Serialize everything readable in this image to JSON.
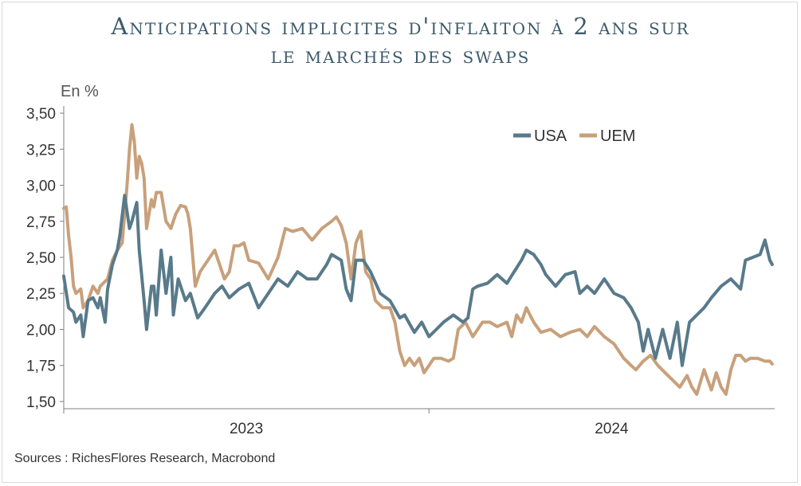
{
  "chart_data": {
    "type": "line",
    "title_line1": "Anticipations implicites d'inflaiton à 2 ans sur",
    "title_line2": "le marchés des swaps",
    "ylabel": "En %",
    "ylim": [
      1.45,
      3.55
    ],
    "yticks": [
      1.5,
      1.75,
      2.0,
      2.25,
      2.5,
      2.75,
      3.0,
      3.25,
      3.5
    ],
    "ytick_labels": [
      "1,50",
      "1,75",
      "2,00",
      "2,25",
      "2,50",
      "2,75",
      "3,00",
      "3,25",
      "3,50"
    ],
    "xlim": [
      2022.0,
      2024.92
    ],
    "xtick_labels": [
      {
        "label": "2023",
        "x": 2022.75
      },
      {
        "label": "2024",
        "x": 2024.25
      }
    ],
    "xtick_marks": [
      2022.0,
      2023.5
    ],
    "legend_position": "top-right",
    "series": [
      {
        "name": "USA",
        "color": "#587a8a",
        "points": [
          [
            2022.0,
            2.37
          ],
          [
            2022.02,
            2.15
          ],
          [
            2022.04,
            2.12
          ],
          [
            2022.05,
            2.05
          ],
          [
            2022.07,
            2.1
          ],
          [
            2022.08,
            1.95
          ],
          [
            2022.1,
            2.2
          ],
          [
            2022.12,
            2.22
          ],
          [
            2022.14,
            2.15
          ],
          [
            2022.15,
            2.22
          ],
          [
            2022.17,
            2.05
          ],
          [
            2022.18,
            2.28
          ],
          [
            2022.2,
            2.45
          ],
          [
            2022.22,
            2.55
          ],
          [
            2022.23,
            2.65
          ],
          [
            2022.25,
            2.93
          ],
          [
            2022.27,
            2.7
          ],
          [
            2022.28,
            2.75
          ],
          [
            2022.3,
            2.88
          ],
          [
            2022.31,
            2.55
          ],
          [
            2022.33,
            2.2
          ],
          [
            2022.34,
            2.0
          ],
          [
            2022.36,
            2.3
          ],
          [
            2022.37,
            2.3
          ],
          [
            2022.38,
            2.1
          ],
          [
            2022.4,
            2.55
          ],
          [
            2022.42,
            2.25
          ],
          [
            2022.44,
            2.5
          ],
          [
            2022.45,
            2.1
          ],
          [
            2022.47,
            2.35
          ],
          [
            2022.5,
            2.2
          ],
          [
            2022.52,
            2.25
          ],
          [
            2022.55,
            2.08
          ],
          [
            2022.58,
            2.15
          ],
          [
            2022.62,
            2.25
          ],
          [
            2022.65,
            2.3
          ],
          [
            2022.68,
            2.22
          ],
          [
            2022.72,
            2.28
          ],
          [
            2022.76,
            2.32
          ],
          [
            2022.8,
            2.15
          ],
          [
            2022.84,
            2.25
          ],
          [
            2022.88,
            2.35
          ],
          [
            2022.92,
            2.3
          ],
          [
            2022.96,
            2.4
          ],
          [
            2023.0,
            2.35
          ],
          [
            2023.04,
            2.35
          ],
          [
            2023.08,
            2.45
          ],
          [
            2023.1,
            2.52
          ],
          [
            2023.14,
            2.48
          ],
          [
            2023.16,
            2.28
          ],
          [
            2023.18,
            2.2
          ],
          [
            2023.2,
            2.48
          ],
          [
            2023.23,
            2.48
          ],
          [
            2023.26,
            2.4
          ],
          [
            2023.3,
            2.25
          ],
          [
            2023.34,
            2.2
          ],
          [
            2023.38,
            2.08
          ],
          [
            2023.4,
            2.1
          ],
          [
            2023.44,
            1.98
          ],
          [
            2023.47,
            2.05
          ],
          [
            2023.5,
            1.95
          ],
          [
            2023.53,
            2.0
          ],
          [
            2023.56,
            2.05
          ],
          [
            2023.6,
            2.1
          ],
          [
            2023.64,
            2.05
          ],
          [
            2023.66,
            2.08
          ],
          [
            2023.68,
            2.28
          ],
          [
            2023.7,
            2.3
          ],
          [
            2023.74,
            2.32
          ],
          [
            2023.78,
            2.38
          ],
          [
            2023.82,
            2.32
          ],
          [
            2023.85,
            2.4
          ],
          [
            2023.88,
            2.48
          ],
          [
            2023.9,
            2.55
          ],
          [
            2023.93,
            2.52
          ],
          [
            2023.96,
            2.45
          ],
          [
            2023.98,
            2.38
          ],
          [
            2024.02,
            2.3
          ],
          [
            2024.06,
            2.38
          ],
          [
            2024.1,
            2.4
          ],
          [
            2024.12,
            2.25
          ],
          [
            2024.15,
            2.3
          ],
          [
            2024.18,
            2.25
          ],
          [
            2024.22,
            2.35
          ],
          [
            2024.26,
            2.25
          ],
          [
            2024.3,
            2.22
          ],
          [
            2024.33,
            2.15
          ],
          [
            2024.36,
            2.05
          ],
          [
            2024.38,
            1.85
          ],
          [
            2024.4,
            2.0
          ],
          [
            2024.43,
            1.8
          ],
          [
            2024.46,
            2.0
          ],
          [
            2024.49,
            1.8
          ],
          [
            2024.52,
            2.05
          ],
          [
            2024.54,
            1.75
          ],
          [
            2024.57,
            2.05
          ],
          [
            2024.6,
            2.1
          ],
          [
            2024.63,
            2.15
          ],
          [
            2024.66,
            2.22
          ],
          [
            2024.7,
            2.3
          ],
          [
            2024.74,
            2.35
          ],
          [
            2024.78,
            2.28
          ],
          [
            2024.8,
            2.48
          ],
          [
            2024.83,
            2.5
          ],
          [
            2024.86,
            2.52
          ],
          [
            2024.88,
            2.62
          ],
          [
            2024.9,
            2.48
          ],
          [
            2024.91,
            2.45
          ]
        ]
      },
      {
        "name": "UEM",
        "color": "#c8a07a",
        "points": [
          [
            2022.0,
            2.84
          ],
          [
            2022.01,
            2.85
          ],
          [
            2022.02,
            2.65
          ],
          [
            2022.03,
            2.5
          ],
          [
            2022.04,
            2.3
          ],
          [
            2022.05,
            2.25
          ],
          [
            2022.07,
            2.28
          ],
          [
            2022.08,
            2.15
          ],
          [
            2022.1,
            2.2
          ],
          [
            2022.12,
            2.3
          ],
          [
            2022.14,
            2.25
          ],
          [
            2022.15,
            2.3
          ],
          [
            2022.18,
            2.35
          ],
          [
            2022.2,
            2.48
          ],
          [
            2022.22,
            2.55
          ],
          [
            2022.24,
            2.6
          ],
          [
            2022.25,
            2.8
          ],
          [
            2022.26,
            3.0
          ],
          [
            2022.27,
            3.25
          ],
          [
            2022.28,
            3.42
          ],
          [
            2022.29,
            3.3
          ],
          [
            2022.3,
            3.05
          ],
          [
            2022.31,
            3.2
          ],
          [
            2022.32,
            3.15
          ],
          [
            2022.33,
            3.05
          ],
          [
            2022.34,
            2.7
          ],
          [
            2022.36,
            2.9
          ],
          [
            2022.37,
            2.85
          ],
          [
            2022.38,
            2.95
          ],
          [
            2022.4,
            2.95
          ],
          [
            2022.42,
            2.75
          ],
          [
            2022.44,
            2.7
          ],
          [
            2022.46,
            2.8
          ],
          [
            2022.48,
            2.86
          ],
          [
            2022.5,
            2.85
          ],
          [
            2022.51,
            2.8
          ],
          [
            2022.52,
            2.7
          ],
          [
            2022.54,
            2.3
          ],
          [
            2022.56,
            2.4
          ],
          [
            2022.58,
            2.45
          ],
          [
            2022.6,
            2.5
          ],
          [
            2022.62,
            2.55
          ],
          [
            2022.64,
            2.45
          ],
          [
            2022.66,
            2.35
          ],
          [
            2022.68,
            2.4
          ],
          [
            2022.7,
            2.58
          ],
          [
            2022.72,
            2.58
          ],
          [
            2022.74,
            2.6
          ],
          [
            2022.76,
            2.48
          ],
          [
            2022.8,
            2.46
          ],
          [
            2022.84,
            2.35
          ],
          [
            2022.88,
            2.5
          ],
          [
            2022.91,
            2.7
          ],
          [
            2022.94,
            2.68
          ],
          [
            2022.98,
            2.7
          ],
          [
            2023.02,
            2.62
          ],
          [
            2023.06,
            2.7
          ],
          [
            2023.1,
            2.75
          ],
          [
            2023.12,
            2.78
          ],
          [
            2023.14,
            2.72
          ],
          [
            2023.16,
            2.6
          ],
          [
            2023.18,
            2.35
          ],
          [
            2023.2,
            2.6
          ],
          [
            2023.22,
            2.68
          ],
          [
            2023.24,
            2.4
          ],
          [
            2023.26,
            2.35
          ],
          [
            2023.28,
            2.2
          ],
          [
            2023.31,
            2.15
          ],
          [
            2023.34,
            2.15
          ],
          [
            2023.36,
            2.05
          ],
          [
            2023.38,
            1.85
          ],
          [
            2023.4,
            1.75
          ],
          [
            2023.42,
            1.8
          ],
          [
            2023.44,
            1.75
          ],
          [
            2023.46,
            1.8
          ],
          [
            2023.48,
            1.7
          ],
          [
            2023.5,
            1.75
          ],
          [
            2023.52,
            1.8
          ],
          [
            2023.55,
            1.8
          ],
          [
            2023.58,
            1.78
          ],
          [
            2023.6,
            1.8
          ],
          [
            2023.62,
            2.0
          ],
          [
            2023.65,
            2.05
          ],
          [
            2023.68,
            1.95
          ],
          [
            2023.72,
            2.05
          ],
          [
            2023.75,
            2.05
          ],
          [
            2023.78,
            2.02
          ],
          [
            2023.82,
            2.05
          ],
          [
            2023.84,
            1.95
          ],
          [
            2023.86,
            2.1
          ],
          [
            2023.88,
            2.05
          ],
          [
            2023.9,
            2.15
          ],
          [
            2023.93,
            2.05
          ],
          [
            2023.96,
            1.98
          ],
          [
            2024.0,
            2.0
          ],
          [
            2024.04,
            1.95
          ],
          [
            2024.08,
            1.98
          ],
          [
            2024.12,
            2.0
          ],
          [
            2024.15,
            1.95
          ],
          [
            2024.18,
            2.02
          ],
          [
            2024.22,
            1.95
          ],
          [
            2024.26,
            1.9
          ],
          [
            2024.3,
            1.8
          ],
          [
            2024.33,
            1.75
          ],
          [
            2024.35,
            1.72
          ],
          [
            2024.38,
            1.78
          ],
          [
            2024.41,
            1.82
          ],
          [
            2024.44,
            1.75
          ],
          [
            2024.47,
            1.7
          ],
          [
            2024.5,
            1.65
          ],
          [
            2024.53,
            1.6
          ],
          [
            2024.56,
            1.68
          ],
          [
            2024.58,
            1.6
          ],
          [
            2024.6,
            1.55
          ],
          [
            2024.63,
            1.72
          ],
          [
            2024.66,
            1.58
          ],
          [
            2024.68,
            1.7
          ],
          [
            2024.7,
            1.6
          ],
          [
            2024.72,
            1.55
          ],
          [
            2024.74,
            1.72
          ],
          [
            2024.76,
            1.82
          ],
          [
            2024.78,
            1.82
          ],
          [
            2024.8,
            1.78
          ],
          [
            2024.82,
            1.8
          ],
          [
            2024.85,
            1.8
          ],
          [
            2024.88,
            1.78
          ],
          [
            2024.9,
            1.78
          ],
          [
            2024.91,
            1.76
          ]
        ]
      }
    ],
    "source": "Sources : RichesFlores Research, Macrobond"
  }
}
